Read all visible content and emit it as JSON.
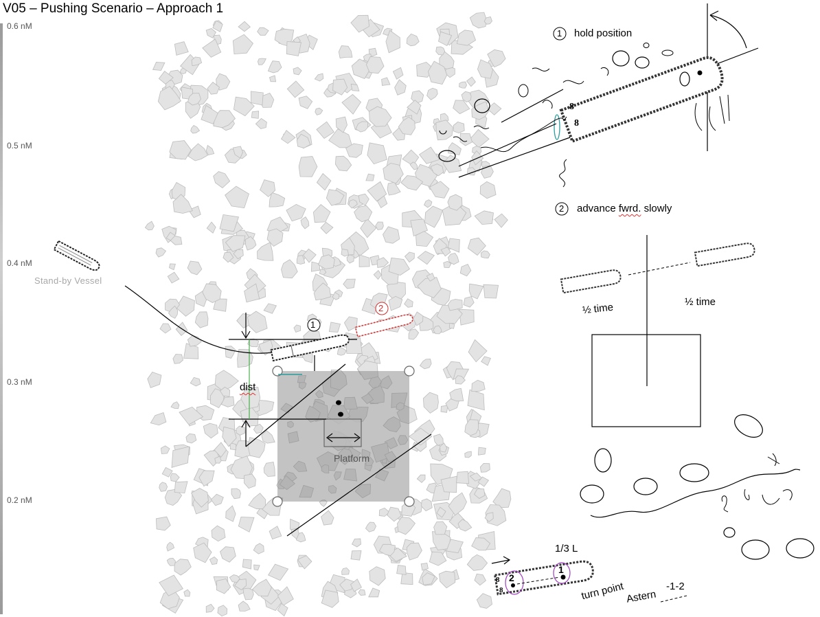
{
  "title": "V05 – Pushing Scenario – Approach 1",
  "scale": {
    "labels": [
      "0.6 nM",
      "0.5 nM",
      "0.4 nM",
      "0.3 nM",
      "0.2 nM"
    ]
  },
  "left_diagram": {
    "standby_label": "Stand-by Vessel",
    "dist_label": "dist",
    "platform_label": "Platform",
    "position_1": "1",
    "position_2": "2"
  },
  "steps": [
    {
      "number": "1",
      "text": "hold position"
    },
    {
      "number": "2",
      "text_prefix": "advance ",
      "text_underlined": "fwrd.",
      "text_suffix": " slowly"
    }
  ],
  "half_time": {
    "left": "½ time",
    "right": "½ time"
  },
  "bottom_sketch": {
    "fraction_label": "1/3 L",
    "turn_point": "turn point",
    "astern": "Astern",
    "astern_code": "-1-2",
    "marker_1": "1",
    "marker_2": "2",
    "prop_mark": "8"
  },
  "colors": {
    "accent_red": "#d03030",
    "ice_fill": "#e3e3e3",
    "ice_stroke": "#bdbdbd",
    "platform_fill": "#7a7a7a",
    "dist_line": "#4caf50",
    "teal": "#2a9d9d",
    "purple": "#a040c0"
  }
}
